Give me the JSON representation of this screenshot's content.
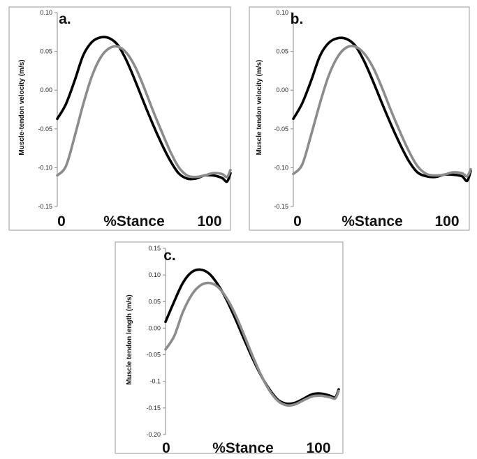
{
  "chart_data": [
    {
      "type": "line",
      "panel_label": "a.",
      "ylabel": "Muscle-tendon velocity (m/s)",
      "xlabel": "%Stance",
      "x_tick_labels": [
        "0",
        "100"
      ],
      "xlim": [
        0,
        100
      ],
      "ylim": [
        -0.15,
        0.1
      ],
      "yticks": [
        -0.15,
        -0.1,
        -0.05,
        0.0,
        0.05,
        0.1
      ],
      "ytick_labels": [
        "-0.15",
        "-0.10",
        "-0.05",
        "0.00",
        "0.05",
        "0.10"
      ],
      "grid": false,
      "series": [
        {
          "color": "#000000",
          "x": [
            0,
            5,
            10,
            15,
            20,
            25,
            30,
            35,
            40,
            45,
            50,
            55,
            60,
            65,
            70,
            75,
            80,
            85,
            90,
            95,
            98,
            100
          ],
          "values": [
            -0.037,
            -0.018,
            0.012,
            0.045,
            0.062,
            0.068,
            0.067,
            0.058,
            0.038,
            0.012,
            -0.016,
            -0.043,
            -0.068,
            -0.09,
            -0.107,
            -0.114,
            -0.114,
            -0.11,
            -0.11,
            -0.113,
            -0.118,
            -0.107
          ]
        },
        {
          "color": "#8c8c8c",
          "x": [
            0,
            5,
            10,
            15,
            20,
            25,
            30,
            35,
            40,
            45,
            50,
            55,
            60,
            65,
            70,
            75,
            80,
            85,
            90,
            95,
            98,
            100
          ],
          "values": [
            -0.11,
            -0.098,
            -0.06,
            -0.018,
            0.018,
            0.042,
            0.054,
            0.056,
            0.048,
            0.03,
            0.004,
            -0.025,
            -0.052,
            -0.078,
            -0.099,
            -0.11,
            -0.112,
            -0.11,
            -0.107,
            -0.108,
            -0.112,
            -0.103
          ]
        }
      ]
    },
    {
      "type": "line",
      "panel_label": "b.",
      "ylabel": "Muscle tendon velocity (m/s)",
      "xlabel": "%Stance",
      "x_tick_labels": [
        "0",
        "100"
      ],
      "xlim": [
        0,
        100
      ],
      "ylim": [
        -0.15,
        0.1
      ],
      "yticks": [
        -0.15,
        -0.1,
        -0.05,
        0.0,
        0.05,
        0.1
      ],
      "ytick_labels": [
        "-0.15",
        "-0.10",
        "-0.05",
        "0.00",
        "0.05",
        "0.10"
      ],
      "grid": false,
      "series": [
        {
          "color": "#000000",
          "x": [
            0,
            5,
            10,
            15,
            20,
            25,
            30,
            35,
            40,
            45,
            50,
            55,
            60,
            65,
            70,
            75,
            80,
            85,
            90,
            95,
            98,
            100
          ],
          "values": [
            -0.037,
            -0.017,
            0.012,
            0.044,
            0.061,
            0.067,
            0.066,
            0.057,
            0.037,
            0.011,
            -0.017,
            -0.044,
            -0.069,
            -0.091,
            -0.106,
            -0.111,
            -0.112,
            -0.109,
            -0.109,
            -0.111,
            -0.117,
            -0.104
          ]
        },
        {
          "color": "#8c8c8c",
          "x": [
            0,
            5,
            10,
            15,
            20,
            25,
            30,
            35,
            40,
            45,
            50,
            55,
            60,
            65,
            70,
            75,
            80,
            85,
            90,
            95,
            98,
            100
          ],
          "values": [
            -0.108,
            -0.096,
            -0.058,
            -0.017,
            0.019,
            0.043,
            0.055,
            0.056,
            0.047,
            0.029,
            0.003,
            -0.026,
            -0.053,
            -0.078,
            -0.098,
            -0.108,
            -0.11,
            -0.109,
            -0.106,
            -0.107,
            -0.111,
            -0.102
          ]
        }
      ]
    },
    {
      "type": "line",
      "panel_label": "c.",
      "ylabel": "Muscle tendon length (m/s)",
      "xlabel": "%Stance",
      "x_tick_labels": [
        "0",
        "100"
      ],
      "xlim": [
        0,
        100
      ],
      "ylim": [
        -0.2,
        0.15
      ],
      "yticks": [
        -0.2,
        -0.15,
        -0.1,
        -0.05,
        0.0,
        0.05,
        0.1,
        0.15
      ],
      "ytick_labels": [
        "-0.20",
        "-0.15",
        "-0.1",
        "-0.05",
        "0.00",
        "0.05",
        "0.10",
        "0.15"
      ],
      "grid": false,
      "series": [
        {
          "color": "#000000",
          "x": [
            0,
            5,
            10,
            15,
            20,
            25,
            30,
            35,
            40,
            45,
            50,
            55,
            60,
            65,
            70,
            75,
            80,
            85,
            90,
            95,
            98,
            100
          ],
          "values": [
            0.012,
            0.05,
            0.085,
            0.105,
            0.11,
            0.103,
            0.083,
            0.055,
            0.02,
            -0.018,
            -0.055,
            -0.088,
            -0.115,
            -0.135,
            -0.142,
            -0.14,
            -0.132,
            -0.124,
            -0.123,
            -0.127,
            -0.13,
            -0.115
          ]
        },
        {
          "color": "#8c8c8c",
          "x": [
            0,
            5,
            10,
            15,
            20,
            25,
            30,
            35,
            40,
            45,
            50,
            55,
            60,
            65,
            70,
            75,
            80,
            85,
            90,
            95,
            98,
            100
          ],
          "values": [
            -0.04,
            -0.015,
            0.03,
            0.062,
            0.08,
            0.085,
            0.078,
            0.058,
            0.028,
            -0.01,
            -0.05,
            -0.087,
            -0.117,
            -0.137,
            -0.145,
            -0.143,
            -0.135,
            -0.128,
            -0.127,
            -0.13,
            -0.132,
            -0.118
          ]
        }
      ]
    }
  ]
}
